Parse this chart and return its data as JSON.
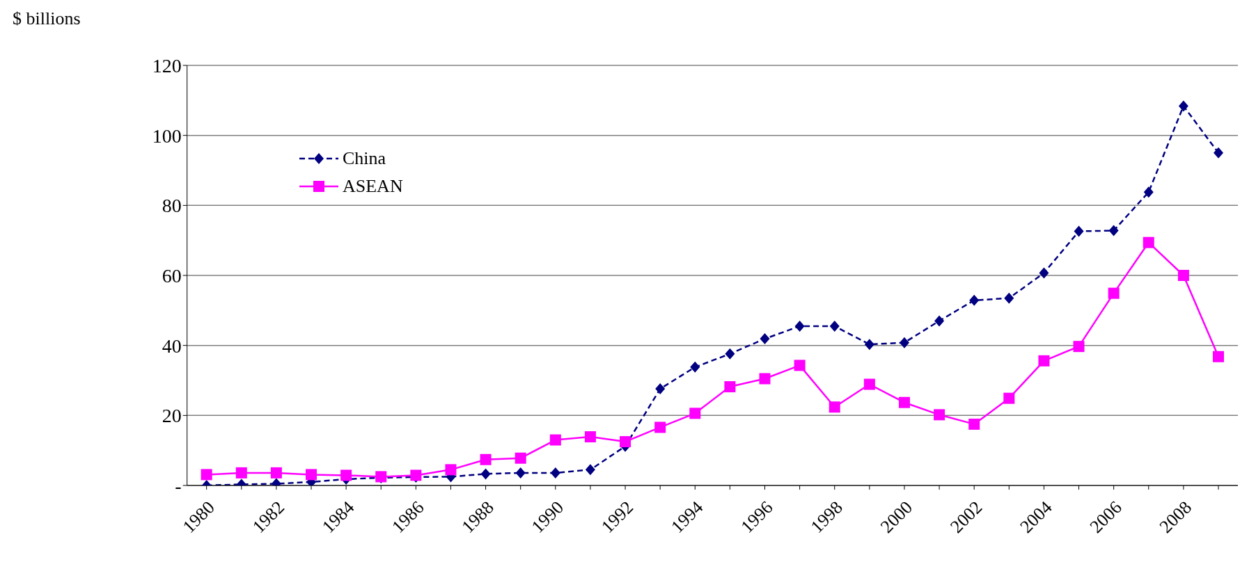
{
  "chart_data": {
    "type": "line",
    "ylabel": "$ billions",
    "categories": [
      "1980",
      null,
      "1982",
      null,
      "1984",
      null,
      "1986",
      null,
      "1988",
      null,
      "1990",
      null,
      "1992",
      null,
      "1994",
      null,
      "1996",
      null,
      "1998",
      null,
      "2000",
      null,
      "2002",
      null,
      "2004",
      null,
      "2006",
      null,
      "2008",
      null
    ],
    "series": [
      {
        "name": "China",
        "color": "#000080",
        "line_style": "dashed",
        "marker": "diamond",
        "values": [
          0,
          0.3,
          0.5,
          1,
          1.8,
          2.2,
          2.4,
          2.5,
          3.3,
          3.6,
          3.6,
          4.5,
          11.2,
          27.6,
          33.8,
          37.6,
          41.9,
          45.5,
          45.5,
          40.3,
          40.8,
          47,
          52.9,
          53.5,
          60.7,
          72.6,
          72.8,
          83.8,
          108.4,
          95
        ]
      },
      {
        "name": "ASEAN",
        "color": "#ff00ff",
        "line_style": "solid",
        "marker": "square",
        "values": [
          3.1,
          3.6,
          3.6,
          3.1,
          2.9,
          2.5,
          2.9,
          4.5,
          7.4,
          7.8,
          13,
          13.9,
          12.5,
          16.6,
          20.6,
          28.2,
          30.5,
          34.3,
          22.4,
          28.9,
          23.7,
          20.2,
          17.5,
          24.9,
          35.6,
          39.7,
          54.9,
          69.4,
          60,
          36.8
        ]
      }
    ],
    "ylim": [
      0,
      120
    ],
    "yticks": [
      {
        "value": 0,
        "label": "-"
      },
      20,
      40,
      60,
      80,
      100,
      120
    ],
    "grid": "y",
    "legend": "top left"
  }
}
